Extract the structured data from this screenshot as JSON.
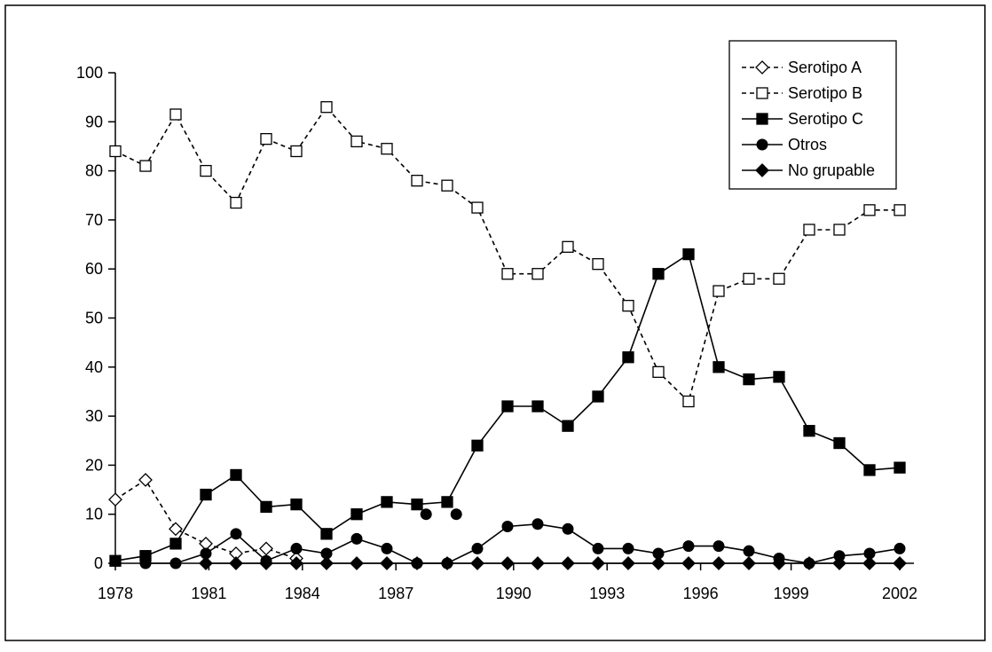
{
  "chart_data": {
    "type": "line",
    "title": "",
    "xlabel": "",
    "ylabel": "",
    "ylim": [
      0,
      100
    ],
    "yticks": [
      0,
      10,
      20,
      30,
      40,
      50,
      60,
      70,
      80,
      90,
      100
    ],
    "xlim": [
      1978,
      2002
    ],
    "xticks": [
      1978,
      1981,
      1984,
      1987,
      1990,
      1993,
      1996,
      1999,
      2002
    ],
    "grid": false,
    "legend_position": "top-right",
    "series": [
      {
        "name": "Serotipo A",
        "marker": "diamond-open",
        "line_style": "dashed",
        "color": "#000000",
        "points": [
          [
            1978,
            13
          ],
          [
            1979,
            17
          ],
          [
            1980,
            7
          ],
          [
            1981,
            4
          ],
          [
            1982,
            2
          ],
          [
            1983,
            3
          ],
          [
            1984,
            1
          ]
        ]
      },
      {
        "name": "Serotipo B",
        "marker": "square-open",
        "line_style": "dashed",
        "color": "#000000",
        "points": [
          [
            1978,
            84
          ],
          [
            1979,
            81
          ],
          [
            1980,
            91.5
          ],
          [
            1981,
            80
          ],
          [
            1982,
            73.5
          ],
          [
            1983,
            86.5
          ],
          [
            1984,
            84
          ],
          [
            1985,
            93
          ],
          [
            1986,
            86
          ],
          [
            1987,
            84.5
          ],
          [
            1988,
            78
          ],
          [
            1989,
            77
          ],
          [
            1990,
            72.5
          ],
          [
            1991,
            59
          ],
          [
            1992,
            59
          ],
          [
            1993,
            64.5
          ],
          [
            1994,
            61
          ],
          [
            1995,
            52.5
          ],
          [
            1996,
            39
          ],
          [
            1997,
            33
          ],
          [
            1998,
            55.5
          ],
          [
            1999,
            58
          ],
          [
            2000,
            58
          ],
          [
            2001,
            68
          ],
          [
            2002,
            68
          ],
          [
            2003,
            72
          ],
          [
            2004,
            72
          ]
        ]
      },
      {
        "name": "Serotipo C",
        "marker": "square-filled",
        "line_style": "solid",
        "color": "#000000",
        "points": [
          [
            1978,
            0.5
          ],
          [
            1979,
            1.5
          ],
          [
            1980,
            4
          ],
          [
            1981,
            14
          ],
          [
            1982,
            18
          ],
          [
            1983,
            11.5
          ],
          [
            1984,
            12
          ],
          [
            1985,
            6
          ],
          [
            1986,
            10
          ],
          [
            1987,
            12.5
          ],
          [
            1988,
            12
          ],
          [
            1989,
            12.5
          ],
          [
            1990,
            24
          ],
          [
            1991,
            32
          ],
          [
            1992,
            32
          ],
          [
            1993,
            28
          ],
          [
            1994,
            34
          ],
          [
            1995,
            42
          ],
          [
            1996,
            59
          ],
          [
            1997,
            63
          ],
          [
            1998,
            40
          ],
          [
            1999,
            37.5
          ],
          [
            2000,
            38
          ],
          [
            2001,
            27
          ],
          [
            2002,
            24.5
          ],
          [
            2003,
            19
          ],
          [
            2004,
            19.5
          ]
        ]
      },
      {
        "name": "Otros",
        "marker": "circle-filled",
        "line_style": "solid",
        "color": "#000000",
        "points": [
          [
            1979,
            0
          ],
          [
            1980,
            0
          ],
          [
            1981,
            2
          ],
          [
            1982,
            6
          ],
          [
            1983,
            0.5
          ],
          [
            1984,
            3
          ],
          [
            1985,
            2
          ],
          [
            1986,
            5
          ],
          [
            1987,
            3
          ],
          [
            1988,
            0
          ],
          [
            1989,
            0
          ],
          [
            1990,
            3
          ],
          [
            1991,
            7.5
          ],
          [
            1992,
            8
          ],
          [
            1993,
            7
          ],
          [
            1994,
            3
          ],
          [
            1995,
            3
          ],
          [
            1996,
            2
          ],
          [
            1997,
            3.5
          ],
          [
            1998,
            3.5
          ],
          [
            1999,
            2.5
          ],
          [
            2000,
            1
          ],
          [
            2001,
            0
          ],
          [
            2002,
            1.5
          ],
          [
            2003,
            2
          ],
          [
            2004,
            3
          ]
        ],
        "extra_points": [
          [
            1988.3,
            10
          ],
          [
            1989.3,
            10
          ]
        ]
      },
      {
        "name": "No grupable",
        "marker": "diamond-filled",
        "line_style": "solid",
        "color": "#000000",
        "points": [
          [
            1981,
            0
          ],
          [
            1982,
            0
          ],
          [
            1983,
            0
          ],
          [
            1984,
            0
          ],
          [
            1985,
            0
          ],
          [
            1986,
            0
          ],
          [
            1987,
            0
          ],
          [
            1988,
            0
          ],
          [
            1989,
            0
          ],
          [
            1990,
            0
          ],
          [
            1991,
            0
          ],
          [
            1992,
            0
          ],
          [
            1993,
            0
          ],
          [
            1994,
            0
          ],
          [
            1995,
            0
          ],
          [
            1996,
            0
          ],
          [
            1997,
            0
          ],
          [
            1998,
            0
          ],
          [
            1999,
            0
          ],
          [
            2000,
            0
          ],
          [
            2001,
            0
          ],
          [
            2002,
            0
          ],
          [
            2003,
            0
          ],
          [
            2004,
            0
          ]
        ]
      }
    ]
  }
}
